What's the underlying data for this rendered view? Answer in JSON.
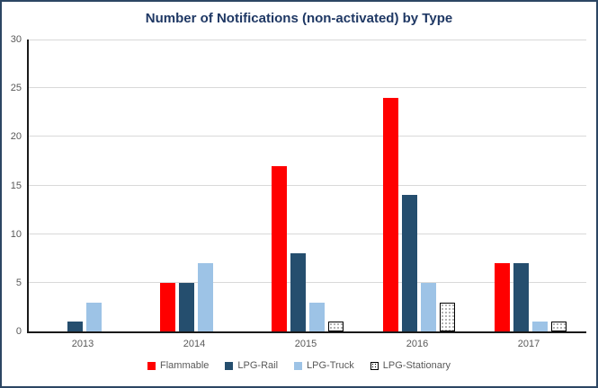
{
  "colors": {
    "frame_border": "#2C4663",
    "background": "#FFFFFF",
    "title": "#1F3864",
    "axis_line": "#1a1a1a",
    "gridline": "#D9D9D9",
    "tick_label": "#595959",
    "legend_label": "#595959",
    "pattern_dot": "#000000"
  },
  "chart_data": {
    "type": "bar",
    "title": "Number of Notifications (non-activated) by Type",
    "categories": [
      "2013",
      "2014",
      "2015",
      "2016",
      "2017"
    ],
    "series": [
      {
        "name": "Flammable",
        "color": "#FF0000",
        "pattern": "solid",
        "values": [
          0,
          5,
          17,
          24,
          7
        ]
      },
      {
        "name": "LPG-Rail",
        "color": "#254E6E",
        "pattern": "solid",
        "values": [
          1,
          5,
          8,
          14,
          7
        ]
      },
      {
        "name": "LPG-Truck",
        "color": "#9DC3E6",
        "pattern": "solid",
        "values": [
          3,
          7,
          3,
          5,
          1
        ]
      },
      {
        "name": "LPG-Stationary",
        "color": "#FFFFFF",
        "pattern": "dotted",
        "border": "#000000",
        "values": [
          0,
          0,
          1,
          3,
          1
        ]
      }
    ],
    "xlabel": "",
    "ylabel": "",
    "ylim": [
      0,
      30
    ],
    "yticks": [
      0,
      5,
      10,
      15,
      20,
      25,
      30
    ],
    "grid": true,
    "legend_position": "bottom"
  }
}
